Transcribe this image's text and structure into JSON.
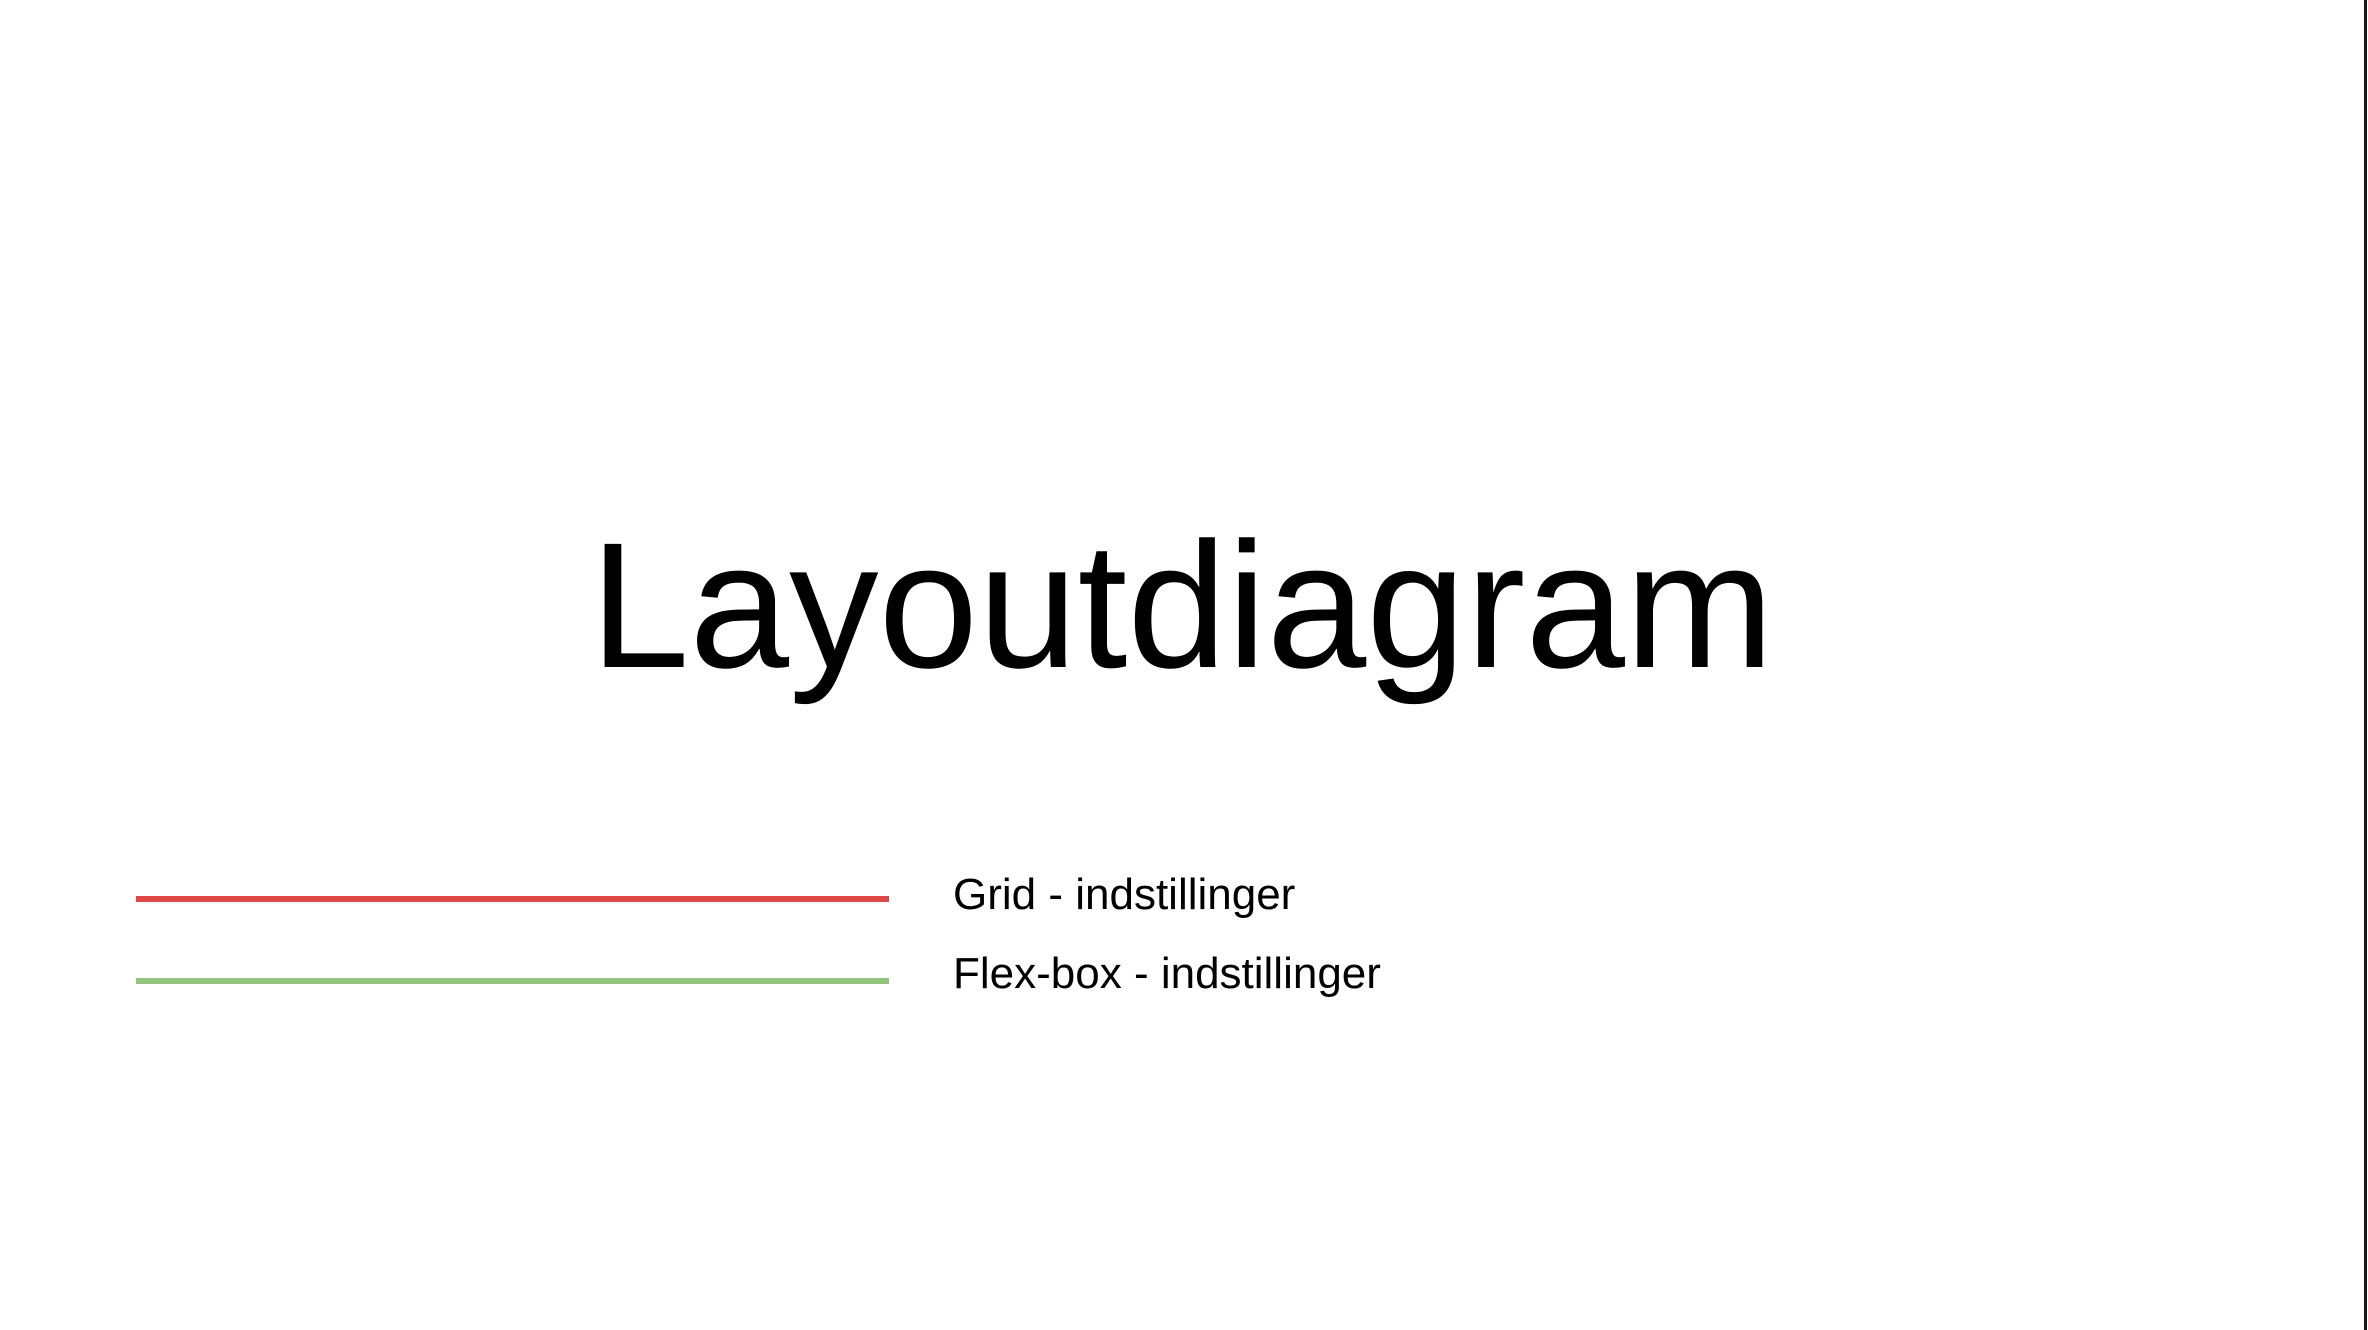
{
  "title": "Layoutdiagram",
  "legend": {
    "items": [
      {
        "key": "grid",
        "label": "Grid - indstillinger",
        "color": "#e04848"
      },
      {
        "key": "flex",
        "label": "Flex-box - indstillinger",
        "color": "#93c47d"
      }
    ]
  }
}
